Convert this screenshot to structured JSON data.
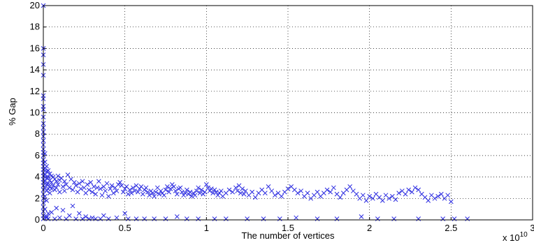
{
  "chart_data": {
    "type": "scatter",
    "xlabel": "The number of vertices",
    "ylabel": "% Gap",
    "x_multiplier_label": "x 10",
    "x_multiplier_exponent": "10",
    "xlim": [
      0,
      3
    ],
    "ylim": [
      0,
      20
    ],
    "xticks": [
      "0",
      "0.5",
      "1",
      "1.5",
      "2",
      "2.5",
      "3"
    ],
    "yticks": [
      "0",
      "2",
      "4",
      "6",
      "8",
      "10",
      "12",
      "14",
      "16",
      "18",
      "20"
    ],
    "grid": true,
    "marker": "x",
    "color": "#2a2ae0",
    "series": [
      {
        "points": [
          [
            0.0,
            20.0
          ],
          [
            0.0,
            16.0
          ],
          [
            0.0,
            15.4
          ],
          [
            0.0,
            14.5
          ],
          [
            0.0,
            13.5
          ],
          [
            0.0,
            11.6
          ],
          [
            0.0,
            11.3
          ],
          [
            0.0,
            10.6
          ],
          [
            0.0,
            10.3
          ],
          [
            0.0,
            9.6
          ],
          [
            0.0,
            9.0
          ],
          [
            0.0,
            8.6
          ],
          [
            0.0,
            8.2
          ],
          [
            0.0,
            7.8
          ],
          [
            0.0,
            7.4
          ],
          [
            0.0,
            7.0
          ],
          [
            0.0,
            6.6
          ],
          [
            0.0,
            6.3
          ],
          [
            0.0,
            6.0
          ],
          [
            0.0,
            5.6
          ],
          [
            0.0,
            5.3
          ],
          [
            0.0,
            5.0
          ],
          [
            0.0,
            4.7
          ],
          [
            0.0,
            4.4
          ],
          [
            0.0,
            4.1
          ],
          [
            0.0,
            3.8
          ],
          [
            0.0,
            3.5
          ],
          [
            0.0,
            3.2
          ],
          [
            0.0,
            2.8
          ],
          [
            0.0,
            2.4
          ],
          [
            0.0,
            2.0
          ],
          [
            0.0,
            1.6
          ],
          [
            0.0,
            1.2
          ],
          [
            0.0,
            0.8
          ],
          [
            0.0,
            0.4
          ],
          [
            0.0,
            0.1
          ],
          [
            0.01,
            6.2
          ],
          [
            0.01,
            5.4
          ],
          [
            0.01,
            4.8
          ],
          [
            0.01,
            4.2
          ],
          [
            0.01,
            3.6
          ],
          [
            0.01,
            3.0
          ],
          [
            0.01,
            2.2
          ],
          [
            0.01,
            1.0
          ],
          [
            0.02,
            5.0
          ],
          [
            0.02,
            4.5
          ],
          [
            0.02,
            3.9
          ],
          [
            0.02,
            3.3
          ],
          [
            0.02,
            2.7
          ],
          [
            0.02,
            1.8
          ],
          [
            0.02,
            0.2
          ],
          [
            0.03,
            4.6
          ],
          [
            0.03,
            4.0
          ],
          [
            0.03,
            3.4
          ],
          [
            0.03,
            2.9
          ],
          [
            0.03,
            0.6
          ],
          [
            0.04,
            4.3
          ],
          [
            0.04,
            3.7
          ],
          [
            0.04,
            3.1
          ],
          [
            0.04,
            2.5
          ],
          [
            0.05,
            4.1
          ],
          [
            0.05,
            3.5
          ],
          [
            0.05,
            2.9
          ],
          [
            0.06,
            4.0
          ],
          [
            0.06,
            3.2
          ],
          [
            0.07,
            3.8
          ],
          [
            0.07,
            2.8
          ],
          [
            0.08,
            3.6
          ],
          [
            0.08,
            3.0
          ],
          [
            0.09,
            4.1
          ],
          [
            0.09,
            3.3
          ],
          [
            0.1,
            3.7
          ],
          [
            0.1,
            2.6
          ],
          [
            0.11,
            3.9
          ],
          [
            0.12,
            3.1
          ],
          [
            0.13,
            3.6
          ],
          [
            0.13,
            2.7
          ],
          [
            0.14,
            3.3
          ],
          [
            0.15,
            4.2
          ],
          [
            0.16,
            3.0
          ],
          [
            0.17,
            3.8
          ],
          [
            0.18,
            2.8
          ],
          [
            0.19,
            3.5
          ],
          [
            0.2,
            3.2
          ],
          [
            0.21,
            2.6
          ],
          [
            0.22,
            3.4
          ],
          [
            0.23,
            2.9
          ],
          [
            0.24,
            3.6
          ],
          [
            0.25,
            3.0
          ],
          [
            0.26,
            2.5
          ],
          [
            0.27,
            3.3
          ],
          [
            0.28,
            2.8
          ],
          [
            0.29,
            3.5
          ],
          [
            0.3,
            2.6
          ],
          [
            0.31,
            3.1
          ],
          [
            0.32,
            2.4
          ],
          [
            0.33,
            3.0
          ],
          [
            0.34,
            3.6
          ],
          [
            0.35,
            2.9
          ],
          [
            0.36,
            2.3
          ],
          [
            0.37,
            3.1
          ],
          [
            0.38,
            2.7
          ],
          [
            0.39,
            3.4
          ],
          [
            0.4,
            2.2
          ],
          [
            0.41,
            2.9
          ],
          [
            0.42,
            3.2
          ],
          [
            0.43,
            2.5
          ],
          [
            0.44,
            3.0
          ],
          [
            0.45,
            2.7
          ],
          [
            0.46,
            3.3
          ],
          [
            0.47,
            3.5
          ],
          [
            0.48,
            3.2
          ],
          [
            0.49,
            2.6
          ],
          [
            0.5,
            2.9
          ],
          [
            0.51,
            3.1
          ],
          [
            0.52,
            2.4
          ],
          [
            0.53,
            2.8
          ],
          [
            0.54,
            2.5
          ],
          [
            0.55,
            3.0
          ],
          [
            0.56,
            2.7
          ],
          [
            0.57,
            3.2
          ],
          [
            0.58,
            2.6
          ],
          [
            0.59,
            2.9
          ],
          [
            0.6,
            3.1
          ],
          [
            0.61,
            2.4
          ],
          [
            0.62,
            2.8
          ],
          [
            0.63,
            3.0
          ],
          [
            0.64,
            2.6
          ],
          [
            0.65,
            2.3
          ],
          [
            0.66,
            2.7
          ],
          [
            0.67,
            2.5
          ],
          [
            0.68,
            2.2
          ],
          [
            0.69,
            2.6
          ],
          [
            0.7,
            3.0
          ],
          [
            0.71,
            2.4
          ],
          [
            0.72,
            2.7
          ],
          [
            0.73,
            2.5
          ],
          [
            0.74,
            2.3
          ],
          [
            0.75,
            2.8
          ],
          [
            0.76,
            3.1
          ],
          [
            0.77,
            2.6
          ],
          [
            0.78,
            2.9
          ],
          [
            0.79,
            3.3
          ],
          [
            0.8,
            3.1
          ],
          [
            0.81,
            2.7
          ],
          [
            0.82,
            2.4
          ],
          [
            0.83,
            2.9
          ],
          [
            0.84,
            3.0
          ],
          [
            0.85,
            2.6
          ],
          [
            0.86,
            2.3
          ],
          [
            0.87,
            2.5
          ],
          [
            0.88,
            2.8
          ],
          [
            0.89,
            2.4
          ],
          [
            0.9,
            2.6
          ],
          [
            0.91,
            2.2
          ],
          [
            0.92,
            2.5
          ],
          [
            0.93,
            2.3
          ],
          [
            0.94,
            2.7
          ],
          [
            0.95,
            3.0
          ],
          [
            0.96,
            2.5
          ],
          [
            0.97,
            2.8
          ],
          [
            0.98,
            2.4
          ],
          [
            0.99,
            2.6
          ],
          [
            1.0,
            3.3
          ],
          [
            1.01,
            3.0
          ],
          [
            1.02,
            2.7
          ],
          [
            1.03,
            2.9
          ],
          [
            1.04,
            2.5
          ],
          [
            1.05,
            2.8
          ],
          [
            1.06,
            2.6
          ],
          [
            1.07,
            2.3
          ],
          [
            1.08,
            2.5
          ],
          [
            1.09,
            2.7
          ],
          [
            1.1,
            2.2
          ],
          [
            1.12,
            2.5
          ],
          [
            1.14,
            2.8
          ],
          [
            1.16,
            2.6
          ],
          [
            1.18,
            3.0
          ],
          [
            1.19,
            2.7
          ],
          [
            1.2,
            3.2
          ],
          [
            1.21,
            2.5
          ],
          [
            1.22,
            2.9
          ],
          [
            1.23,
            2.4
          ],
          [
            1.24,
            2.7
          ],
          [
            1.26,
            2.3
          ],
          [
            1.28,
            2.6
          ],
          [
            1.3,
            2.1
          ],
          [
            1.32,
            2.5
          ],
          [
            1.34,
            2.8
          ],
          [
            1.36,
            2.5
          ],
          [
            1.38,
            3.1
          ],
          [
            1.4,
            2.7
          ],
          [
            1.42,
            2.3
          ],
          [
            1.44,
            2.5
          ],
          [
            1.46,
            2.2
          ],
          [
            1.48,
            2.6
          ],
          [
            1.5,
            2.9
          ],
          [
            1.52,
            3.1
          ],
          [
            1.54,
            2.8
          ],
          [
            1.56,
            2.5
          ],
          [
            1.58,
            2.7
          ],
          [
            1.6,
            2.2
          ],
          [
            1.62,
            2.5
          ],
          [
            1.64,
            2.0
          ],
          [
            1.66,
            2.3
          ],
          [
            1.68,
            2.6
          ],
          [
            1.7,
            2.2
          ],
          [
            1.72,
            2.5
          ],
          [
            1.74,
            2.8
          ],
          [
            1.76,
            2.6
          ],
          [
            1.78,
            3.0
          ],
          [
            1.8,
            2.4
          ],
          [
            1.82,
            2.1
          ],
          [
            1.84,
            2.5
          ],
          [
            1.86,
            2.8
          ],
          [
            1.88,
            3.1
          ],
          [
            1.9,
            2.7
          ],
          [
            1.92,
            2.4
          ],
          [
            1.94,
            2.0
          ],
          [
            1.96,
            2.3
          ],
          [
            1.98,
            1.8
          ],
          [
            2.0,
            2.2
          ],
          [
            2.02,
            2.0
          ],
          [
            2.04,
            2.4
          ],
          [
            2.06,
            2.1
          ],
          [
            2.08,
            1.8
          ],
          [
            2.1,
            2.3
          ],
          [
            2.12,
            2.0
          ],
          [
            2.14,
            2.2
          ],
          [
            2.16,
            1.9
          ],
          [
            2.18,
            2.5
          ],
          [
            2.2,
            2.7
          ],
          [
            2.22,
            2.4
          ],
          [
            2.24,
            2.8
          ],
          [
            2.26,
            2.6
          ],
          [
            2.28,
            3.0
          ],
          [
            2.3,
            2.8
          ],
          [
            2.32,
            2.4
          ],
          [
            2.34,
            2.1
          ],
          [
            2.36,
            1.8
          ],
          [
            2.38,
            2.3
          ],
          [
            2.4,
            2.0
          ],
          [
            2.42,
            2.2
          ],
          [
            2.44,
            2.4
          ],
          [
            2.46,
            2.0
          ],
          [
            2.48,
            2.3
          ],
          [
            2.5,
            1.7
          ],
          [
            0.02,
            0.3
          ],
          [
            0.03,
            0.1
          ],
          [
            0.05,
            0.7
          ],
          [
            0.07,
            0.1
          ],
          [
            0.08,
            1.1
          ],
          [
            0.1,
            0.2
          ],
          [
            0.12,
            0.9
          ],
          [
            0.14,
            0.1
          ],
          [
            0.16,
            0.4
          ],
          [
            0.18,
            1.3
          ],
          [
            0.2,
            0.1
          ],
          [
            0.22,
            0.6
          ],
          [
            0.24,
            0.1
          ],
          [
            0.26,
            0.3
          ],
          [
            0.28,
            0.1
          ],
          [
            0.3,
            0.2
          ],
          [
            0.32,
            0.1
          ],
          [
            0.35,
            0.1
          ],
          [
            0.37,
            0.4
          ],
          [
            0.4,
            0.1
          ],
          [
            0.45,
            0.2
          ],
          [
            0.5,
            0.6
          ],
          [
            0.52,
            0.1
          ],
          [
            0.57,
            0.1
          ],
          [
            0.62,
            0.1
          ],
          [
            0.68,
            0.1
          ],
          [
            0.75,
            0.1
          ],
          [
            0.82,
            0.3
          ],
          [
            0.88,
            0.1
          ],
          [
            0.95,
            0.1
          ],
          [
            1.05,
            0.1
          ],
          [
            1.12,
            0.1
          ],
          [
            1.25,
            0.1
          ],
          [
            1.35,
            0.1
          ],
          [
            1.45,
            0.1
          ],
          [
            1.55,
            0.2
          ],
          [
            1.68,
            0.1
          ],
          [
            1.8,
            0.1
          ],
          [
            1.95,
            0.3
          ],
          [
            2.05,
            0.1
          ],
          [
            2.15,
            0.1
          ],
          [
            2.3,
            0.1
          ],
          [
            2.45,
            0.1
          ],
          [
            2.52,
            0.1
          ],
          [
            2.6,
            0.1
          ]
        ]
      }
    ]
  }
}
